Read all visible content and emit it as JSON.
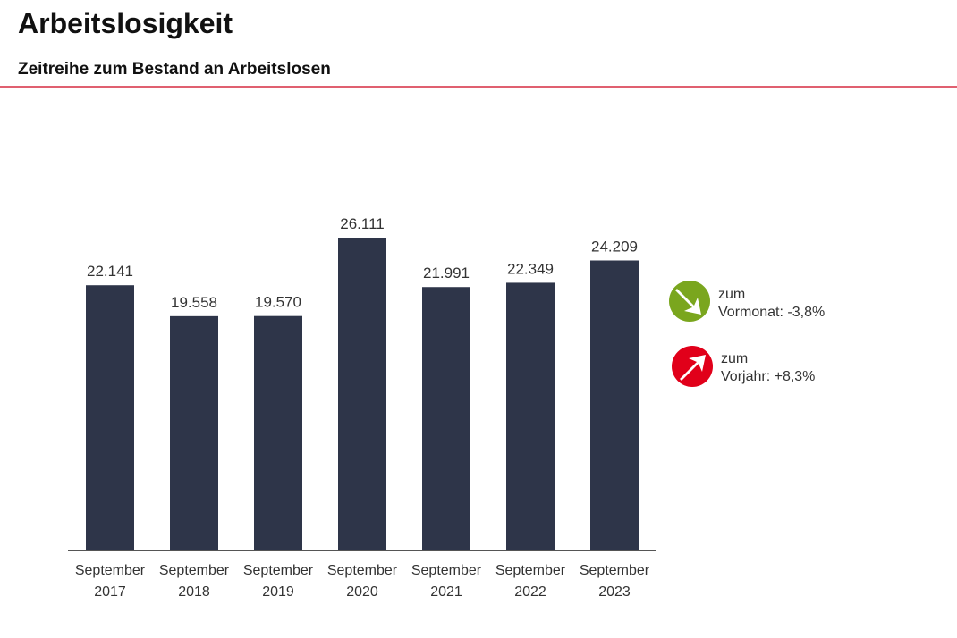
{
  "header": {
    "title": "Arbeitslosigkeit",
    "subtitle": "Zeitreihe zum Bestand an Arbeitslosen"
  },
  "chart_data": {
    "type": "bar",
    "categories": [
      [
        "September",
        "2017"
      ],
      [
        "September",
        "2018"
      ],
      [
        "September",
        "2019"
      ],
      [
        "September",
        "2020"
      ],
      [
        "September",
        "2021"
      ],
      [
        "September",
        "2022"
      ],
      [
        "September",
        "2023"
      ]
    ],
    "values": [
      22141,
      19558,
      19570,
      26111,
      21991,
      22349,
      24209
    ],
    "data_labels": [
      "22.141",
      "19.558",
      "19.570",
      "26.111",
      "21.991",
      "22.349",
      "24.209"
    ],
    "ylim": [
      0,
      26111
    ],
    "bar_color": "#2e3549",
    "grid": false
  },
  "indicators": [
    {
      "line1": "zum",
      "line2": "Vormonat:",
      "value": "-3,8%",
      "direction": "down",
      "color": "#7aa61e",
      "icon": "arrow-down-right-icon"
    },
    {
      "line1": "zum",
      "line2": "Vorjahr:",
      "value": "+8,3%",
      "direction": "up",
      "color": "#e1001a",
      "icon": "arrow-up-right-icon"
    }
  ]
}
